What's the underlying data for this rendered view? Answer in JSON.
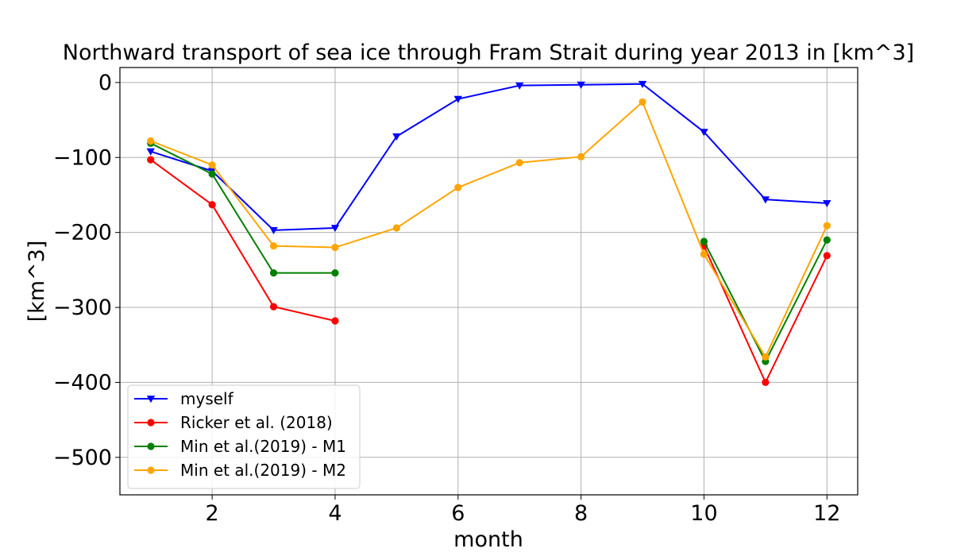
{
  "chart_data": {
    "type": "line",
    "title": "Northward transport of sea ice through Fram Strait during year 2013 in [km^3]",
    "xlabel": "month",
    "ylabel": "[km^3]",
    "xlim": [
      0.5,
      12.5
    ],
    "ylim": [
      -550,
      20
    ],
    "xticks": [
      2,
      4,
      6,
      8,
      10,
      12
    ],
    "yticks": [
      0,
      -100,
      -200,
      -300,
      -400,
      -500
    ],
    "xtick_labels": [
      "2",
      "4",
      "6",
      "8",
      "10",
      "12"
    ],
    "ytick_labels": [
      "0",
      "−100",
      "−200",
      "−300",
      "−400",
      "−500"
    ],
    "grid": true,
    "legend_position": "lower-left",
    "series": [
      {
        "name": "myself",
        "color": "#0000ff",
        "marker": "triangle-down",
        "points": [
          [
            1,
            -92
          ],
          [
            2,
            -118
          ],
          [
            3,
            -197
          ],
          [
            4,
            -194
          ],
          [
            5,
            -72
          ],
          [
            6,
            -22
          ],
          [
            7,
            -4
          ],
          [
            8,
            -3
          ],
          [
            9,
            -2
          ],
          [
            10,
            -66
          ],
          [
            11,
            -156
          ],
          [
            12,
            -161
          ]
        ]
      },
      {
        "name": "Ricker et al. (2018)",
        "color": "#ff0000",
        "marker": "circle",
        "points": [
          [
            1,
            -103
          ],
          [
            2,
            -163
          ],
          [
            3,
            -299
          ],
          [
            4,
            -318
          ],
          [
            10,
            -218
          ],
          [
            11,
            -400
          ],
          [
            12,
            -231
          ]
        ]
      },
      {
        "name": "Min et al.(2019) - M1",
        "color": "#008000",
        "marker": "circle",
        "points": [
          [
            1,
            -81
          ],
          [
            2,
            -122
          ],
          [
            3,
            -254
          ],
          [
            4,
            -254
          ],
          [
            10,
            -212
          ],
          [
            11,
            -372
          ],
          [
            12,
            -210
          ]
        ]
      },
      {
        "name": "Min et al.(2019) - M2",
        "color": "#ffa500",
        "marker": "circle",
        "points": [
          [
            1,
            -78
          ],
          [
            2,
            -110
          ],
          [
            3,
            -218
          ],
          [
            4,
            -220
          ],
          [
            5,
            -194
          ],
          [
            6,
            -140
          ],
          [
            7,
            -107
          ],
          [
            8,
            -99
          ],
          [
            9,
            -26
          ],
          [
            10,
            -229
          ],
          [
            11,
            -366
          ],
          [
            12,
            -191
          ]
        ]
      }
    ]
  }
}
